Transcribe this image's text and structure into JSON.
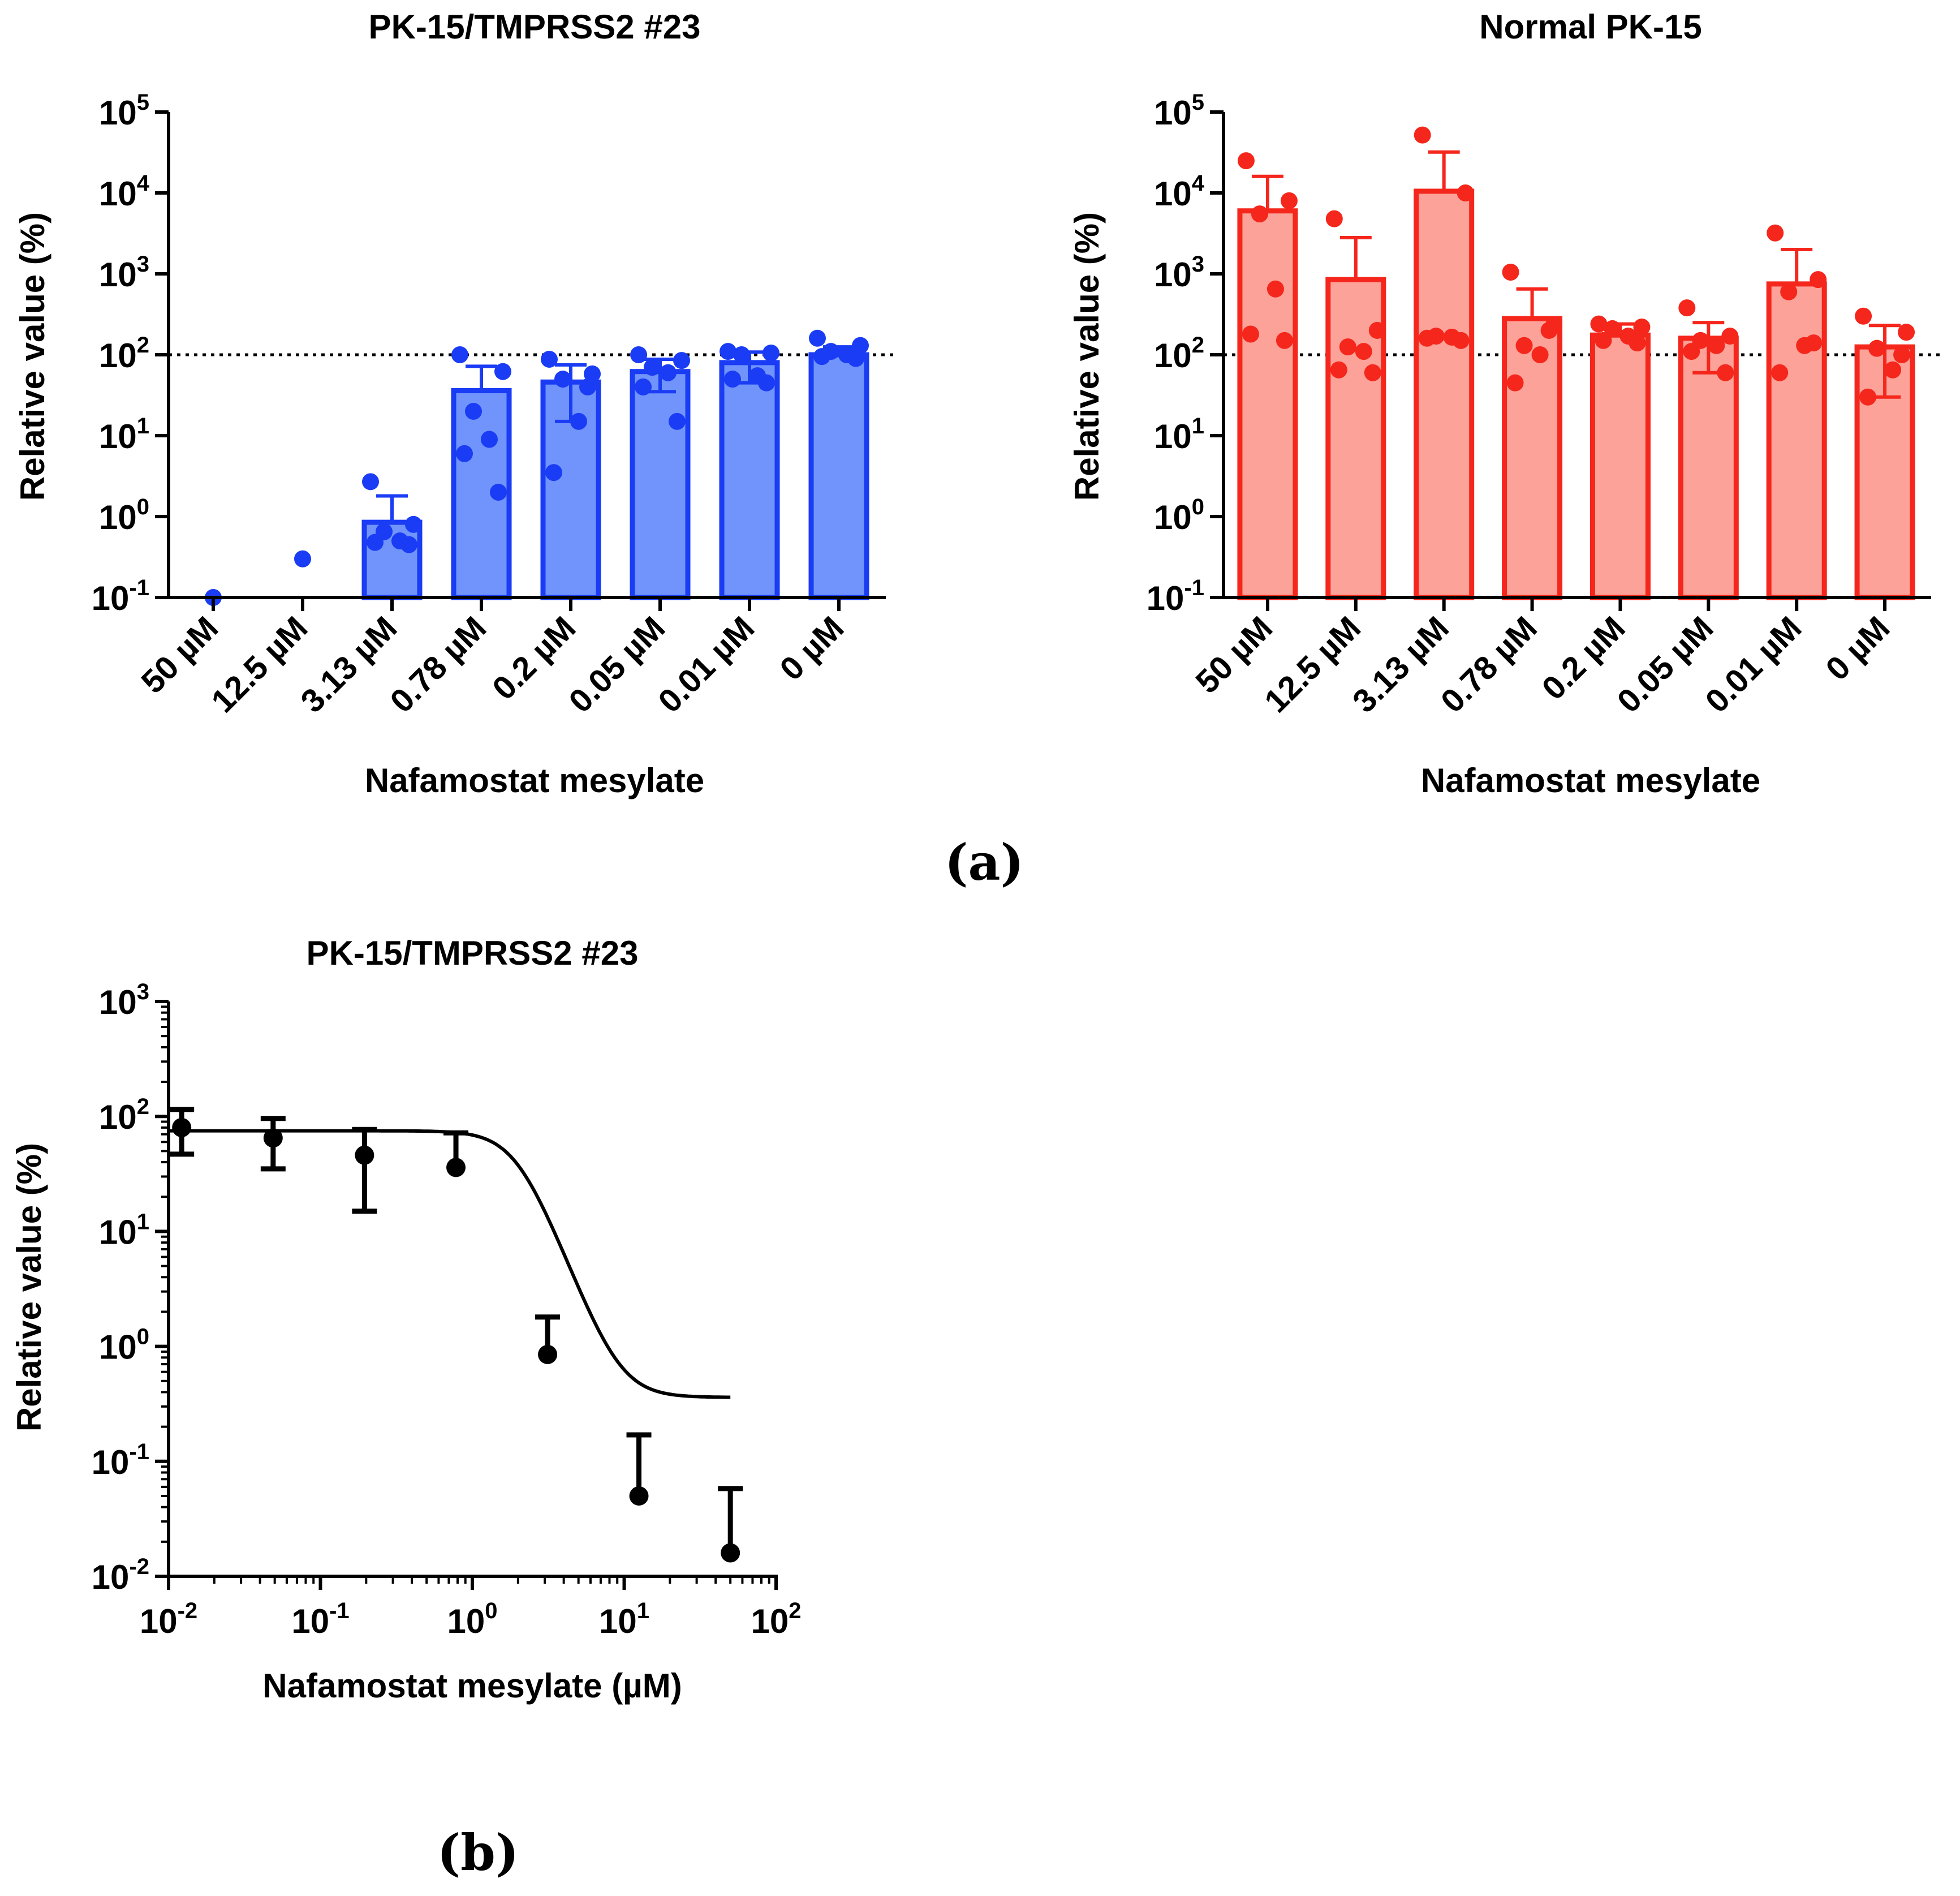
{
  "panel_labels": {
    "a": "(a)",
    "b": "(b)"
  },
  "chart_data": [
    {
      "id": "a1",
      "type": "bar",
      "title": "PK-15/TMPRSS2 #23",
      "xlabel": "Nafamostat mesylate",
      "ylabel": "Relative value (%)",
      "yscale": "log",
      "ylim": [
        0.1,
        100000
      ],
      "yticks": [
        {
          "base": "10",
          "exp": "-1"
        },
        {
          "base": "10",
          "exp": "0"
        },
        {
          "base": "10",
          "exp": "1"
        },
        {
          "base": "10",
          "exp": "2"
        },
        {
          "base": "10",
          "exp": "3"
        },
        {
          "base": "10",
          "exp": "4"
        },
        {
          "base": "10",
          "exp": "5"
        }
      ],
      "reference_line": 100,
      "color": "#1a3cf5",
      "fill": "#7094fb",
      "categories": [
        "50 µM",
        "12.5 µM",
        "3.13 µM",
        "0.78 µM",
        "0.2 µM",
        "0.05 µM",
        "0.01 µM",
        "0 µM"
      ],
      "values": [
        null,
        null,
        0.85,
        36,
        46,
        62,
        80,
        100
      ],
      "error_upper": [
        null,
        null,
        1.8,
        72,
        75,
        88,
        108,
        125
      ],
      "error_lower": [
        null,
        null,
        null,
        null,
        15,
        35,
        45,
        null
      ],
      "points": [
        [
          0.1
        ],
        [
          0.3
        ],
        [
          2.7,
          0.8,
          0.65,
          0.5,
          0.48,
          0.45
        ],
        [
          100,
          62,
          20,
          9,
          6,
          2
        ],
        [
          88,
          58,
          50,
          15,
          3.5,
          40
        ],
        [
          100,
          85,
          70,
          60,
          40,
          15
        ],
        [
          110,
          105,
          100,
          55,
          50,
          45
        ],
        [
          160,
          130,
          110,
          100,
          95,
          90
        ]
      ]
    },
    {
      "id": "a2",
      "type": "bar",
      "title": "Normal PK-15",
      "xlabel": "Nafamostat mesylate",
      "ylabel": "Relative value (%)",
      "yscale": "log",
      "ylim": [
        0.1,
        100000
      ],
      "yticks": [
        {
          "base": "10",
          "exp": "-1"
        },
        {
          "base": "10",
          "exp": "0"
        },
        {
          "base": "10",
          "exp": "1"
        },
        {
          "base": "10",
          "exp": "2"
        },
        {
          "base": "10",
          "exp": "3"
        },
        {
          "base": "10",
          "exp": "4"
        },
        {
          "base": "10",
          "exp": "5"
        }
      ],
      "reference_line": 100,
      "color": "#f5261b",
      "fill": "#fca299",
      "categories": [
        "50 µM",
        "12.5 µM",
        "3.13 µM",
        "0.78 µM",
        "0.2 µM",
        "0.05 µM",
        "0.01 µM",
        "0 µM"
      ],
      "values": [
        6000,
        850,
        10500,
        280,
        175,
        160,
        750,
        125
      ],
      "error_upper": [
        16000,
        2800,
        32000,
        650,
        240,
        250,
        2000,
        230
      ],
      "error_lower": [
        null,
        null,
        null,
        null,
        null,
        60,
        null,
        30
      ],
      "points": [
        [
          25000,
          8000,
          5500,
          650,
          180,
          150
        ],
        [
          4800,
          200,
          125,
          110,
          65,
          60
        ],
        [
          52000,
          10000,
          170,
          165,
          160,
          150
        ],
        [
          1050,
          230,
          130,
          100,
          45,
          200
        ],
        [
          240,
          220,
          210,
          170,
          150,
          140
        ],
        [
          380,
          170,
          150,
          130,
          110,
          60
        ],
        [
          3200,
          850,
          600,
          130,
          60,
          140
        ],
        [
          300,
          190,
          120,
          65,
          30,
          100
        ]
      ]
    },
    {
      "id": "b",
      "type": "scatter",
      "title": "PK-15/TMPRSS2 #23",
      "xlabel": "Nafamostat mesylate (µM)",
      "ylabel": "Relative value (%)",
      "xscale": "log",
      "yscale": "log",
      "xlim": [
        0.01,
        100
      ],
      "ylim": [
        0.01,
        1000
      ],
      "xticks": [
        {
          "base": "10",
          "exp": "-2"
        },
        {
          "base": "10",
          "exp": "-1"
        },
        {
          "base": "10",
          "exp": "0"
        },
        {
          "base": "10",
          "exp": "1"
        },
        {
          "base": "10",
          "exp": "2"
        }
      ],
      "yticks": [
        {
          "base": "10",
          "exp": "-2"
        },
        {
          "base": "10",
          "exp": "-1"
        },
        {
          "base": "10",
          "exp": "0"
        },
        {
          "base": "10",
          "exp": "1"
        },
        {
          "base": "10",
          "exp": "2"
        },
        {
          "base": "10",
          "exp": "3"
        }
      ],
      "color": "#000000",
      "points": [
        {
          "x": 0.0122,
          "y": 80,
          "err_up": 115,
          "err_down": 47
        },
        {
          "x": 0.0488,
          "y": 65,
          "err_up": 96,
          "err_down": 35
        },
        {
          "x": 0.195,
          "y": 46,
          "err_up": 77,
          "err_down": 15
        },
        {
          "x": 0.78,
          "y": 36,
          "err_up": 72,
          "err_down": null
        },
        {
          "x": 3.13,
          "y": 0.85,
          "err_up": 1.8,
          "err_down": null
        },
        {
          "x": 12.5,
          "y": 0.05,
          "err_up": 0.17,
          "err_down": null
        },
        {
          "x": 50,
          "y": 0.016,
          "err_up": 0.058,
          "err_down": null
        }
      ],
      "fit_curve": {
        "model": "sigmoidal dose-response",
        "top": 75,
        "bottom": 0.36,
        "ic50": 2.0,
        "hill": 3.5,
        "x_range": [
          0.01,
          50
        ]
      }
    }
  ]
}
